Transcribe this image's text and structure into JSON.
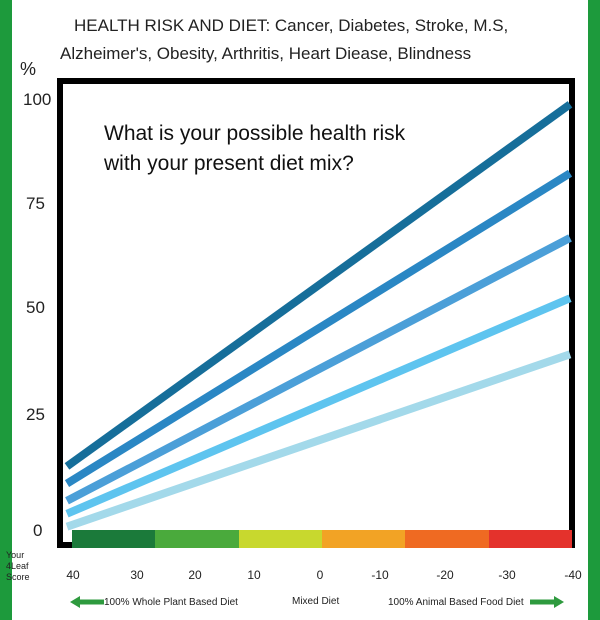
{
  "header": {
    "title_line1": "HEALTH RISK AND DIET: Cancer, Diabetes, Stroke, M.S,",
    "title_line2": "Alzheimer's, Obesity, Arthritis, Heart Diease, Blindness"
  },
  "question": {
    "line1": "What is your possible health risk",
    "line2": "with your present diet mix?"
  },
  "score_label": "Your 4Leaf Score",
  "footer": {
    "left": "100% Whole Plant Based Diet",
    "middle": "Mixed Diet",
    "right": "100% Animal Based Food Diet"
  },
  "colors": {
    "background": "#1d9a3c",
    "series": [
      "#166e9a",
      "#2a87c4",
      "#4b9fd8",
      "#5ec4ef",
      "#a3d9ea"
    ],
    "colorbar": [
      "#1b7a3a",
      "#4aaa3c",
      "#c8d82e",
      "#f2a325",
      "#ef6a22",
      "#e4322c"
    ],
    "arrow": "#2e9a3e"
  },
  "chart_data": {
    "type": "line",
    "title": "HEALTH RISK AND DIET: Cancer, Diabetes, Stroke, M.S, Alzheimer's, Obesity, Arthritis, Heart Diease, Blindness",
    "xlabel": "Your 4Leaf Score",
    "ylabel": "%",
    "x_ticks": [
      "40",
      "30",
      "20",
      "10",
      "0",
      "-10",
      "-20",
      "-30",
      "-40"
    ],
    "y_ticks": [
      "0",
      "25",
      "50",
      "75",
      "100"
    ],
    "xlim": [
      40,
      -40
    ],
    "ylim": [
      0,
      100
    ],
    "grid": false,
    "series": [
      {
        "x": [
          40,
          -40
        ],
        "values": [
          15,
          99
        ]
      },
      {
        "x": [
          40,
          -40
        ],
        "values": [
          11,
          83
        ]
      },
      {
        "x": [
          40,
          -40
        ],
        "values": [
          7,
          68
        ]
      },
      {
        "x": [
          40,
          -40
        ],
        "values": [
          4,
          54
        ]
      },
      {
        "x": [
          40,
          -40
        ],
        "values": [
          1,
          41
        ]
      }
    ]
  }
}
